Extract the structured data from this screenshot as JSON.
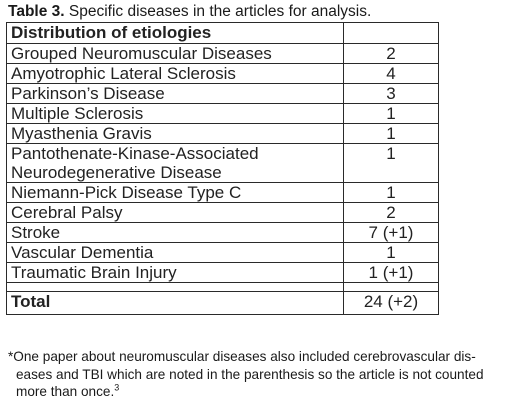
{
  "caption": {
    "label": "Table 3.",
    "text": " Specific diseases in the articles for analysis."
  },
  "table": {
    "header": "Distribution of etiologies",
    "rows": [
      {
        "name": "Grouped Neuromuscular Diseases",
        "count": "2"
      },
      {
        "name": "Amyotrophic Lateral Sclerosis",
        "count": "4"
      },
      {
        "name": "Parkinson’s Disease",
        "count": "3"
      },
      {
        "name": "Multiple Sclerosis",
        "count": "1"
      },
      {
        "name": "Myasthenia Gravis",
        "count": "1"
      },
      {
        "name_line1": "Pantothenate-Kinase-Associated",
        "name_line2": "Neurodegenerative Disease",
        "count": "1"
      },
      {
        "name": "Niemann-Pick Disease Type C",
        "count": "1"
      },
      {
        "name": "Cerebral Palsy",
        "count": "2"
      },
      {
        "name": "Stroke",
        "count": "7 (+1)"
      },
      {
        "name": "Vascular Dementia",
        "count": "1"
      },
      {
        "name": "Traumatic Brain Injury",
        "count": "1 (+1)"
      }
    ],
    "total_label": "Total",
    "total_value": "24 (+2)"
  },
  "footnote": {
    "line1": "*One paper about neuromuscular diseases also included cerebrovascular dis-",
    "line2": "eases and TBI which are noted in the parenthesis so the article is not counted",
    "line3": "more than once.",
    "ref": "3"
  }
}
